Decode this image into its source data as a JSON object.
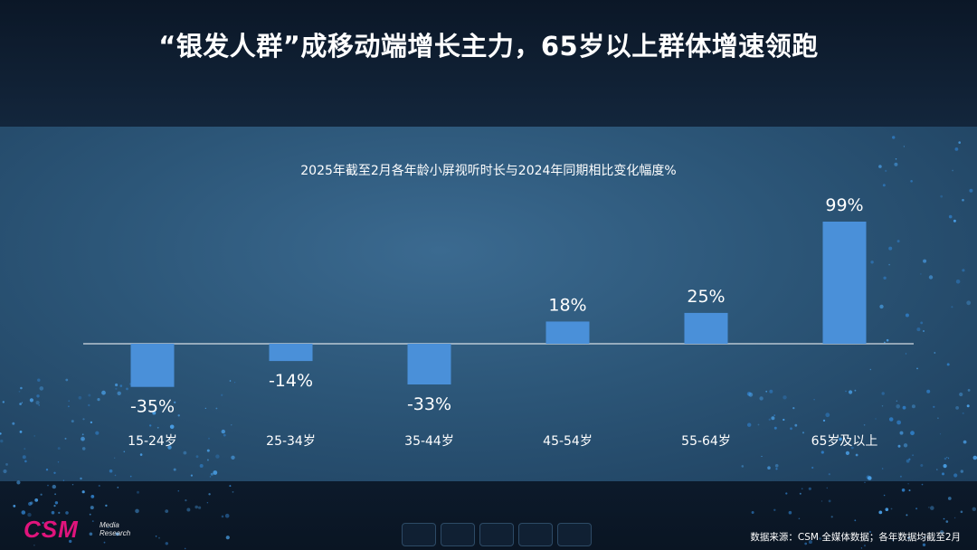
{
  "slide": {
    "title": "“银发人群”成移动端增长主力，65岁以上群体增速领跑"
  },
  "chart_data": {
    "type": "bar",
    "title": "2025年截至2月各年龄小屏视听时长与2024年同期相比变化幅度%",
    "categories": [
      "15-24岁",
      "25-34岁",
      "35-44岁",
      "45-54岁",
      "55-64岁",
      "65岁及以上"
    ],
    "values": [
      -35,
      -14,
      -33,
      18,
      25,
      99
    ],
    "value_labels": [
      "-35%",
      "-14%",
      "-33%",
      "18%",
      "25%",
      "99%"
    ],
    "xlabel": "",
    "ylabel": "",
    "ylim": [
      -60,
      120
    ],
    "grid": false,
    "legend": "none",
    "bar_color": "#4a90d9",
    "baseline_color": "#ffffff"
  },
  "footer": {
    "logo_main": "CSM",
    "logo_sub_line1": "Media",
    "logo_sub_line2": "Research",
    "source": "数据来源：CSM 全媒体数据；各年数据均截至2月",
    "nav_buttons": 5
  },
  "colors": {
    "logo": "#e0147c",
    "panel": "#2c5678",
    "header": "#0b1727"
  }
}
